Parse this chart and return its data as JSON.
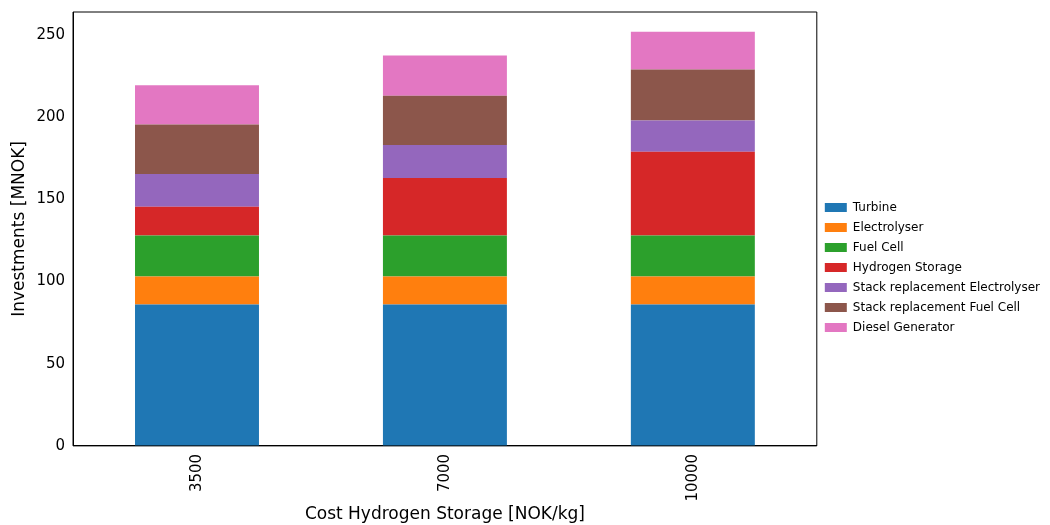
{
  "chart_data": {
    "type": "bar",
    "stacked": true,
    "xlabel": "Cost Hydrogen Storage [NOK/kg]",
    "ylabel": "Investments [MNOK]",
    "categories": [
      "3500",
      "7000",
      "10000"
    ],
    "ylim": [
      0,
      264
    ],
    "yticks": [
      0,
      50,
      100,
      150,
      200,
      250
    ],
    "grid": false,
    "legend": "right",
    "series": [
      {
        "name": "Turbine",
        "color": "#1f77b4",
        "values": [
          86,
          86,
          86
        ]
      },
      {
        "name": "Electrolyser",
        "color": "#ff7f0e",
        "values": [
          17,
          17,
          17
        ]
      },
      {
        "name": "Fuel Cell",
        "color": "#2ca02c",
        "values": [
          25,
          25,
          25
        ]
      },
      {
        "name": "Hydrogen Storage",
        "color": "#d62728",
        "values": [
          17.5,
          35,
          51
        ]
      },
      {
        "name": "Stack replacement Electrolyser",
        "color": "#9467bd",
        "values": [
          20,
          20,
          19
        ]
      },
      {
        "name": "Stack replacement Fuel Cell",
        "color": "#8c564b",
        "values": [
          30,
          30,
          31
        ]
      },
      {
        "name": "Diesel Generator",
        "color": "#e377c2",
        "values": [
          24,
          24.5,
          23
        ]
      }
    ]
  }
}
